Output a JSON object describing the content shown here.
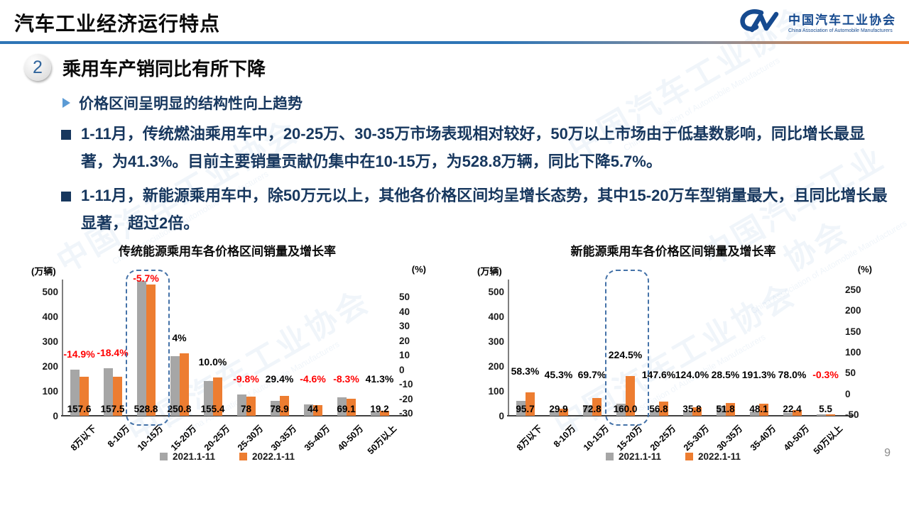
{
  "header": {
    "title": "汽车工业经济运行特点",
    "logo": {
      "name_cn": "中国汽车工业协会",
      "name_en": "China Association of Automobile Manufacturers",
      "brand_blue": "#164a8f"
    }
  },
  "section": {
    "number": "2",
    "title": "乘用车产销同比有所下降"
  },
  "content": {
    "subtitle": "价格区间呈明显的结构性向上趋势",
    "bullets": [
      "1-11月，传统燃油乘用车中，20-25万、30-35万市场表现相对较好，50万以上市场由于低基数影响，同比增长最显著，为41.3%。目前主要销量贡献仍集中在10-15万，为528.8万辆，同比下降5.7%。",
      "1-11月，新能源乘用车中，除50万元以上，其他各价格区间均呈增长态势，其中15-20万车型销量最大，且同比增长最显著，超过2倍。"
    ]
  },
  "legend": {
    "series1": "2021.1-11",
    "series2": "2022.1-11"
  },
  "colors": {
    "bar_2021": "#A6A6A6",
    "bar_2022": "#ED7D31",
    "negative": "#FF0000",
    "positive_text": "#000000",
    "navy_text": "#17375E",
    "highlight_dash": "#4472A8",
    "divider_blue": "#2E75B6",
    "divider_orange": "#ED7D31"
  },
  "page_number": "9",
  "watermark": {
    "cn": "中国汽车工业协会",
    "en": "China Association of Automobile Manufacturers"
  },
  "chart_data": [
    {
      "type": "bar",
      "title": "传统能源乘用车各价格区间销量及增长率",
      "left_axis_label": "(万辆)",
      "right_axis_label": "(%)",
      "left_ticks": [
        500,
        400,
        300,
        200,
        100,
        0
      ],
      "right_ticks": [
        50,
        40,
        30,
        20,
        10,
        0,
        -10,
        -20,
        -30
      ],
      "left_ylim": [
        0,
        500
      ],
      "right_ylim": [
        -30,
        50
      ],
      "grid": false,
      "legend_position": "bottom",
      "categories": [
        "8万以下",
        "8-10万",
        "10-15万",
        "15-20万",
        "20-25万",
        "25-30万",
        "30-35万",
        "35-40万",
        "40-50万",
        "50万以上"
      ],
      "series": [
        {
          "name": "2021.1-11",
          "values": [
            185.2,
            193.0,
            560.8,
            241.2,
            141.3,
            86.5,
            61.0,
            46.1,
            75.4,
            13.6
          ]
        },
        {
          "name": "2022.1-11",
          "values": [
            157.6,
            157.5,
            528.8,
            250.8,
            155.4,
            78,
            78.9,
            44,
            69.1,
            19.2
          ]
        }
      ],
      "value_labels": [
        "157.6",
        "157.5",
        "528.8",
        "250.8",
        "155.4",
        "78",
        "78.9",
        "44",
        "69.1",
        "19.2"
      ],
      "growth_labels": [
        "-14.9%",
        "-18.4%",
        "-5.7%",
        "4%",
        "10.0%",
        "-9.8%",
        "29.4%",
        "-4.6%",
        "-8.3%",
        "41.3%"
      ],
      "highlight_index": 2,
      "highlighted_category": "10-15万"
    },
    {
      "type": "bar",
      "title": "新能源乘用车各价格区间销量及增长率",
      "left_axis_label": "(万辆)",
      "right_axis_label": "(%)",
      "left_ticks": [
        500,
        400,
        300,
        200,
        100,
        0
      ],
      "right_ticks": [
        250,
        200,
        150,
        100,
        50,
        0,
        -50
      ],
      "left_ylim": [
        0,
        500
      ],
      "right_ylim": [
        -50,
        250
      ],
      "grid": false,
      "legend_position": "bottom",
      "categories": [
        "8万以下",
        "8-10万",
        "10-15万",
        "15-20万",
        "20-25万",
        "25-30万",
        "30-35万",
        "35-40万",
        "40-50万",
        "50万以上"
      ],
      "series": [
        {
          "name": "2021.1-11",
          "values": [
            60.5,
            20.6,
            42.9,
            49.3,
            22.9,
            16.0,
            40.3,
            16.5,
            12.6,
            5.5
          ]
        },
        {
          "name": "2022.1-11",
          "values": [
            95.7,
            29.9,
            72.8,
            160.0,
            56.8,
            35.8,
            51.8,
            48.1,
            22.4,
            5.5
          ]
        }
      ],
      "value_labels": [
        "95.7",
        "29.9",
        "72.8",
        "160.0",
        "56.8",
        "35.8",
        "51.8",
        "48.1",
        "22.4",
        "5.5"
      ],
      "growth_labels": [
        "58.3%",
        "45.3%",
        "69.7%",
        "224.5%",
        "147.6%",
        "124.0%",
        "28.5%",
        "191.3%",
        "78.0%",
        "-0.3%"
      ],
      "highlight_index": 3,
      "highlighted_category": "15-20万"
    }
  ]
}
